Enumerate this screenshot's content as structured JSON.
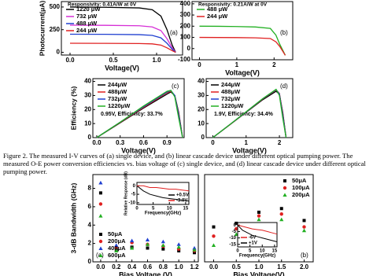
{
  "caption": "Figure 2. The measured I-V curves of (a) single device, and (b) linear cascade device under different optical pumping power. The measured O-E power conversion efficiencies vs. bias voltage of (c) single device, and (d) linear cascade device under different optical pumping power.",
  "chart_data": [
    {
      "type": "line",
      "panel_label": "(a)",
      "xlabel": "Voltage(V)",
      "ylabel": "Photocurrent(μA)",
      "annotation": "Responsivity: 0.41A/W at 0V",
      "xlim": [
        -0.1,
        1.3
      ],
      "xticks": [
        {
          "value": 0,
          "label": "0.0"
        },
        0.5,
        {
          "value": 1,
          "label": "1.0"
        }
      ],
      "ylim": [
        -30,
        560
      ],
      "yticks": [
        0,
        250,
        500
      ],
      "legend": "top-left",
      "series": [
        {
          "name": "1220 μW",
          "color": "#000000",
          "x": [
            0,
            0.4,
            0.8,
            0.95,
            1.05,
            1.12,
            1.18,
            1.22
          ],
          "values": [
            500,
            497,
            490,
            470,
            400,
            250,
            80,
            0
          ]
        },
        {
          "name": "732 μW",
          "color": "#d62fd6",
          "x": [
            0,
            0.4,
            0.8,
            0.95,
            1.05,
            1.12,
            1.18,
            1.22
          ],
          "values": [
            300,
            298,
            293,
            280,
            240,
            150,
            50,
            0
          ]
        },
        {
          "name": "488 μW",
          "color": "#1f3fd0",
          "x": [
            0,
            0.4,
            0.8,
            0.95,
            1.05,
            1.12,
            1.18,
            1.22
          ],
          "values": [
            200,
            199,
            195,
            187,
            160,
            100,
            35,
            0
          ]
        },
        {
          "name": "244 μW",
          "color": "#e02020",
          "x": [
            0,
            0.4,
            0.8,
            0.95,
            1.05,
            1.12,
            1.18,
            1.22
          ],
          "values": [
            100,
            99,
            97,
            93,
            80,
            50,
            18,
            0
          ]
        }
      ]
    },
    {
      "type": "line",
      "panel_label": "(b)",
      "xlabel": "Voltage(V)",
      "annotation": "Responsivity: 0.21A/W at 0V",
      "xlim": [
        -0.2,
        2.5
      ],
      "xticks": [
        0,
        1,
        2
      ],
      "ylim": [
        -100,
        420
      ],
      "yticks": [
        -100,
        0,
        100,
        200,
        300,
        400
      ],
      "legend": "top-left",
      "series": [
        {
          "name": "488 μW",
          "color": "#22b022",
          "x": [
            0,
            0.5,
            1,
            1.5,
            1.9,
            2.05,
            2.15,
            2.3
          ],
          "values": [
            200,
            199,
            197,
            193,
            180,
            120,
            40,
            -60
          ]
        },
        {
          "name": "244 μW",
          "color": "#e02020",
          "x": [
            0,
            0.5,
            1,
            1.5,
            1.9,
            2.05,
            2.15,
            2.3
          ],
          "values": [
            100,
            99,
            98,
            96,
            90,
            60,
            20,
            -60
          ]
        }
      ]
    },
    {
      "type": "line",
      "panel_label": "(c)",
      "xlabel": "Voltage(V)",
      "ylabel": "Efficiency (%)",
      "annotation": "0.95V, Efficiency: 33.7%",
      "xlim": [
        -0.05,
        1.12
      ],
      "xticks": [
        {
          "value": 0,
          "label": "0.0"
        },
        0.3,
        0.6,
        0.9
      ],
      "ylim": [
        0,
        42
      ],
      "yticks": [
        0,
        10,
        20,
        30,
        40
      ],
      "legend": "top-left",
      "series": [
        {
          "name": "244μW",
          "color": "#000000",
          "x": [
            0,
            0.3,
            0.6,
            0.9,
            0.95,
            1.0,
            1.05,
            1.1
          ],
          "values": [
            0,
            10.5,
            21,
            31,
            32.5,
            30,
            18,
            0
          ]
        },
        {
          "name": "488μW",
          "color": "#e02020",
          "x": [
            0,
            0.3,
            0.6,
            0.9,
            0.95,
            1.0,
            1.05,
            1.1
          ],
          "values": [
            0,
            10.8,
            21.5,
            32,
            33,
            30,
            17,
            0
          ]
        },
        {
          "name": "732μW",
          "color": "#1f3fd0",
          "x": [
            0,
            0.3,
            0.6,
            0.9,
            0.95,
            1.0,
            1.05,
            1.1
          ],
          "values": [
            0,
            11,
            22,
            32.5,
            33.5,
            30,
            16,
            0
          ]
        },
        {
          "name": "1220μW",
          "color": "#22b022",
          "x": [
            0,
            0.3,
            0.6,
            0.9,
            0.95,
            1.0,
            1.05,
            1.1
          ],
          "values": [
            0,
            11,
            22.5,
            33,
            33.7,
            29,
            14,
            0
          ]
        }
      ]
    },
    {
      "type": "line",
      "panel_label": "(d)",
      "xlabel": "Voltage(V)",
      "annotation": "1.9V, Efficiency: 34.4%",
      "xlim": [
        -0.2,
        2.4
      ],
      "xticks": [
        0,
        1,
        2
      ],
      "ylim": [
        0,
        42
      ],
      "yticks": [
        0,
        10,
        20,
        30,
        40
      ],
      "legend": "top-left",
      "series": [
        {
          "name": "244μW",
          "color": "#000000",
          "x": [
            0,
            0.5,
            1,
            1.5,
            1.9,
            2.0,
            2.1,
            2.2
          ],
          "values": [
            0,
            9,
            18,
            27,
            33,
            31,
            18,
            0
          ]
        },
        {
          "name": "488μW",
          "color": "#e02020",
          "x": [
            0,
            0.5,
            1,
            1.5,
            1.9,
            2.0,
            2.1,
            2.2
          ],
          "values": [
            0,
            9,
            18.2,
            27.5,
            34,
            31.5,
            17,
            0
          ]
        },
        {
          "name": "732μW",
          "color": "#1f3fd0",
          "x": [
            0,
            0.5,
            1,
            1.5,
            1.9,
            2.0,
            2.1,
            2.2
          ],
          "values": [
            0,
            9.1,
            18.3,
            27.7,
            34.2,
            31,
            16,
            0
          ]
        },
        {
          "name": "1220μW",
          "color": "#22b022",
          "x": [
            0,
            0.5,
            1,
            1.5,
            1.9,
            2.0,
            2.1,
            2.2
          ],
          "values": [
            0,
            9.1,
            18.4,
            27.8,
            34.4,
            30,
            14,
            0
          ]
        }
      ]
    },
    {
      "type": "scatter",
      "panel_label": "(a)",
      "xlabel": "Bias Voltage (V)",
      "ylabel": "3-dB Bandwidth (GHz)",
      "xlim": [
        -0.1,
        1.25
      ],
      "xticks": [
        {
          "value": 0,
          "label": "0.0"
        },
        0.2,
        0.4,
        0.6,
        0.8,
        {
          "value": 1,
          "label": "1.0"
        },
        1.2
      ],
      "ylim": [
        0,
        9.5
      ],
      "yticks": [
        0,
        2,
        4,
        6,
        8
      ],
      "legend": "bottom-left",
      "series": [
        {
          "name": "50μA",
          "color": "#000000",
          "marker": "square",
          "x": [
            0,
            0.2,
            0.4,
            0.6,
            0.8,
            1.0,
            1.2
          ],
          "values": [
            7.5,
            1.3,
            1.6,
            1.5,
            1.4,
            1.2,
            1.0
          ]
        },
        {
          "name": "200μA",
          "color": "#e02020",
          "marker": "circle",
          "x": [
            0,
            0.2,
            0.4,
            0.6,
            0.8,
            1.0,
            1.2
          ],
          "values": [
            6.3,
            1.6,
            2.1,
            1.9,
            1.7,
            1.4,
            1.2
          ]
        },
        {
          "name": "400μA",
          "color": "#1f3fd0",
          "marker": "triangle",
          "x": [
            0,
            0.2,
            0.4,
            0.6,
            0.8,
            1.0,
            1.2
          ],
          "values": [
            8.6,
            1.8,
            2.3,
            2.4,
            2.2,
            1.9,
            1.5
          ]
        },
        {
          "name": "600μA",
          "color": "#22b022",
          "marker": "triangle",
          "x": [
            0,
            0.2,
            0.4,
            0.6,
            0.8,
            1.0,
            1.2
          ],
          "values": [
            5.0,
            1.2,
            1.5,
            1.9,
            1.8,
            1.6,
            1.3
          ]
        }
      ]
    },
    {
      "type": "scatter",
      "panel_label": "(b)",
      "xlabel": "Bias Voltage(V)",
      "xlim": [
        -0.2,
        2.2
      ],
      "xticks": [
        {
          "value": 0,
          "label": "0.0"
        },
        0.5,
        {
          "value": 1,
          "label": "1.0"
        },
        1.5,
        {
          "value": 2,
          "label": "2.0"
        }
      ],
      "ylim": [
        0,
        9.5
      ],
      "yticks": [],
      "legend": "top-right",
      "series": [
        {
          "name": "50μA",
          "color": "#000000",
          "marker": "square",
          "x": [
            0,
            0.5,
            1.0,
            1.5,
            2.0
          ],
          "values": [
            3.8,
            4.2,
            5.4,
            5.8,
            4.5
          ]
        },
        {
          "name": "100μA",
          "color": "#e02020",
          "marker": "circle",
          "x": [
            0,
            0.5,
            1.0,
            1.5,
            2.0
          ],
          "values": [
            2.8,
            3.6,
            5.0,
            5.2,
            3.8
          ]
        },
        {
          "name": "200μA",
          "color": "#22b022",
          "marker": "triangle",
          "x": [
            0,
            0.5,
            1.0,
            1.5,
            2.0
          ],
          "values": [
            1.8,
            3.0,
            4.6,
            4.6,
            3.4
          ]
        }
      ]
    },
    {
      "type": "line",
      "xlabel": "Frequency(GHz)",
      "ylabel": "Relative Response (dB)",
      "xlim": [
        0,
        16
      ],
      "xticks": [
        0,
        5,
        10,
        15
      ],
      "ylim": [
        -11,
        2
      ],
      "yticks": [
        0,
        -5,
        -10
      ],
      "legend": "bottom-right",
      "series": [
        {
          "name": "+0.5V",
          "color": "#000000",
          "x": [
            0,
            2,
            4,
            6,
            8,
            10,
            12,
            14,
            16
          ],
          "values": [
            0,
            -3,
            -5,
            -6,
            -7,
            -7.5,
            -8,
            -8.5,
            -9
          ]
        },
        {
          "name": "-3.0V",
          "color": "#e02020",
          "x": [
            0,
            2,
            4,
            6,
            8,
            10,
            12,
            14,
            16
          ],
          "values": [
            0,
            0,
            -1,
            -1,
            -1.5,
            -2,
            -2,
            -2.5,
            -3
          ]
        }
      ]
    },
    {
      "type": "line",
      "xlabel": "Frequency(GHz)",
      "xlim": [
        0,
        16
      ],
      "xticks": [
        0,
        5,
        10,
        15
      ],
      "ylim": [
        -17,
        2
      ],
      "yticks": [
        0,
        -5,
        -10,
        -15
      ],
      "legend": "bottom-left",
      "series": [
        {
          "name": "-6V",
          "color": "#e02020",
          "x": [
            0,
            2,
            4,
            6,
            8,
            10,
            12,
            14,
            16
          ],
          "values": [
            0,
            -1,
            -2,
            -3,
            -3.5,
            -4,
            -5,
            -6,
            -7
          ]
        },
        {
          "name": "+1V",
          "color": "#000000",
          "x": [
            0,
            2,
            4,
            6,
            8,
            10,
            12,
            14,
            16
          ],
          "values": [
            0,
            -4,
            -6,
            -8,
            -9,
            -10,
            -11,
            -12,
            -13
          ]
        }
      ]
    }
  ]
}
